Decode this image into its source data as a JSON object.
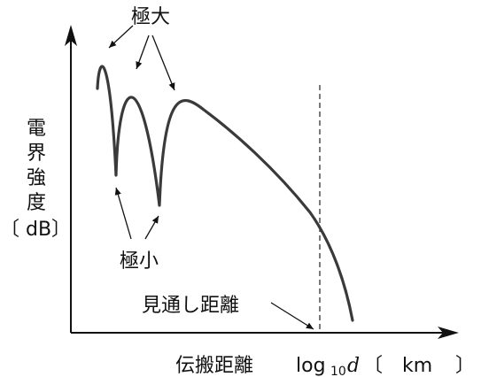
{
  "labels": {
    "maxima": "極大",
    "minima": "極小",
    "los_distance": "見通し距離",
    "y_axis_chars": [
      "電",
      "界",
      "強",
      "度"
    ],
    "y_axis_unit": "〔 dB〕",
    "x_axis_title": "伝搬距離",
    "x_axis_log": "log",
    "x_axis_subscript": "10",
    "x_axis_var": "d",
    "x_axis_unit_open": "〔",
    "x_axis_unit": "km",
    "x_axis_unit_close": "〕"
  },
  "colors": {
    "axis": "#111111",
    "curve": "#3a3a3a",
    "text": "#111111"
  }
}
